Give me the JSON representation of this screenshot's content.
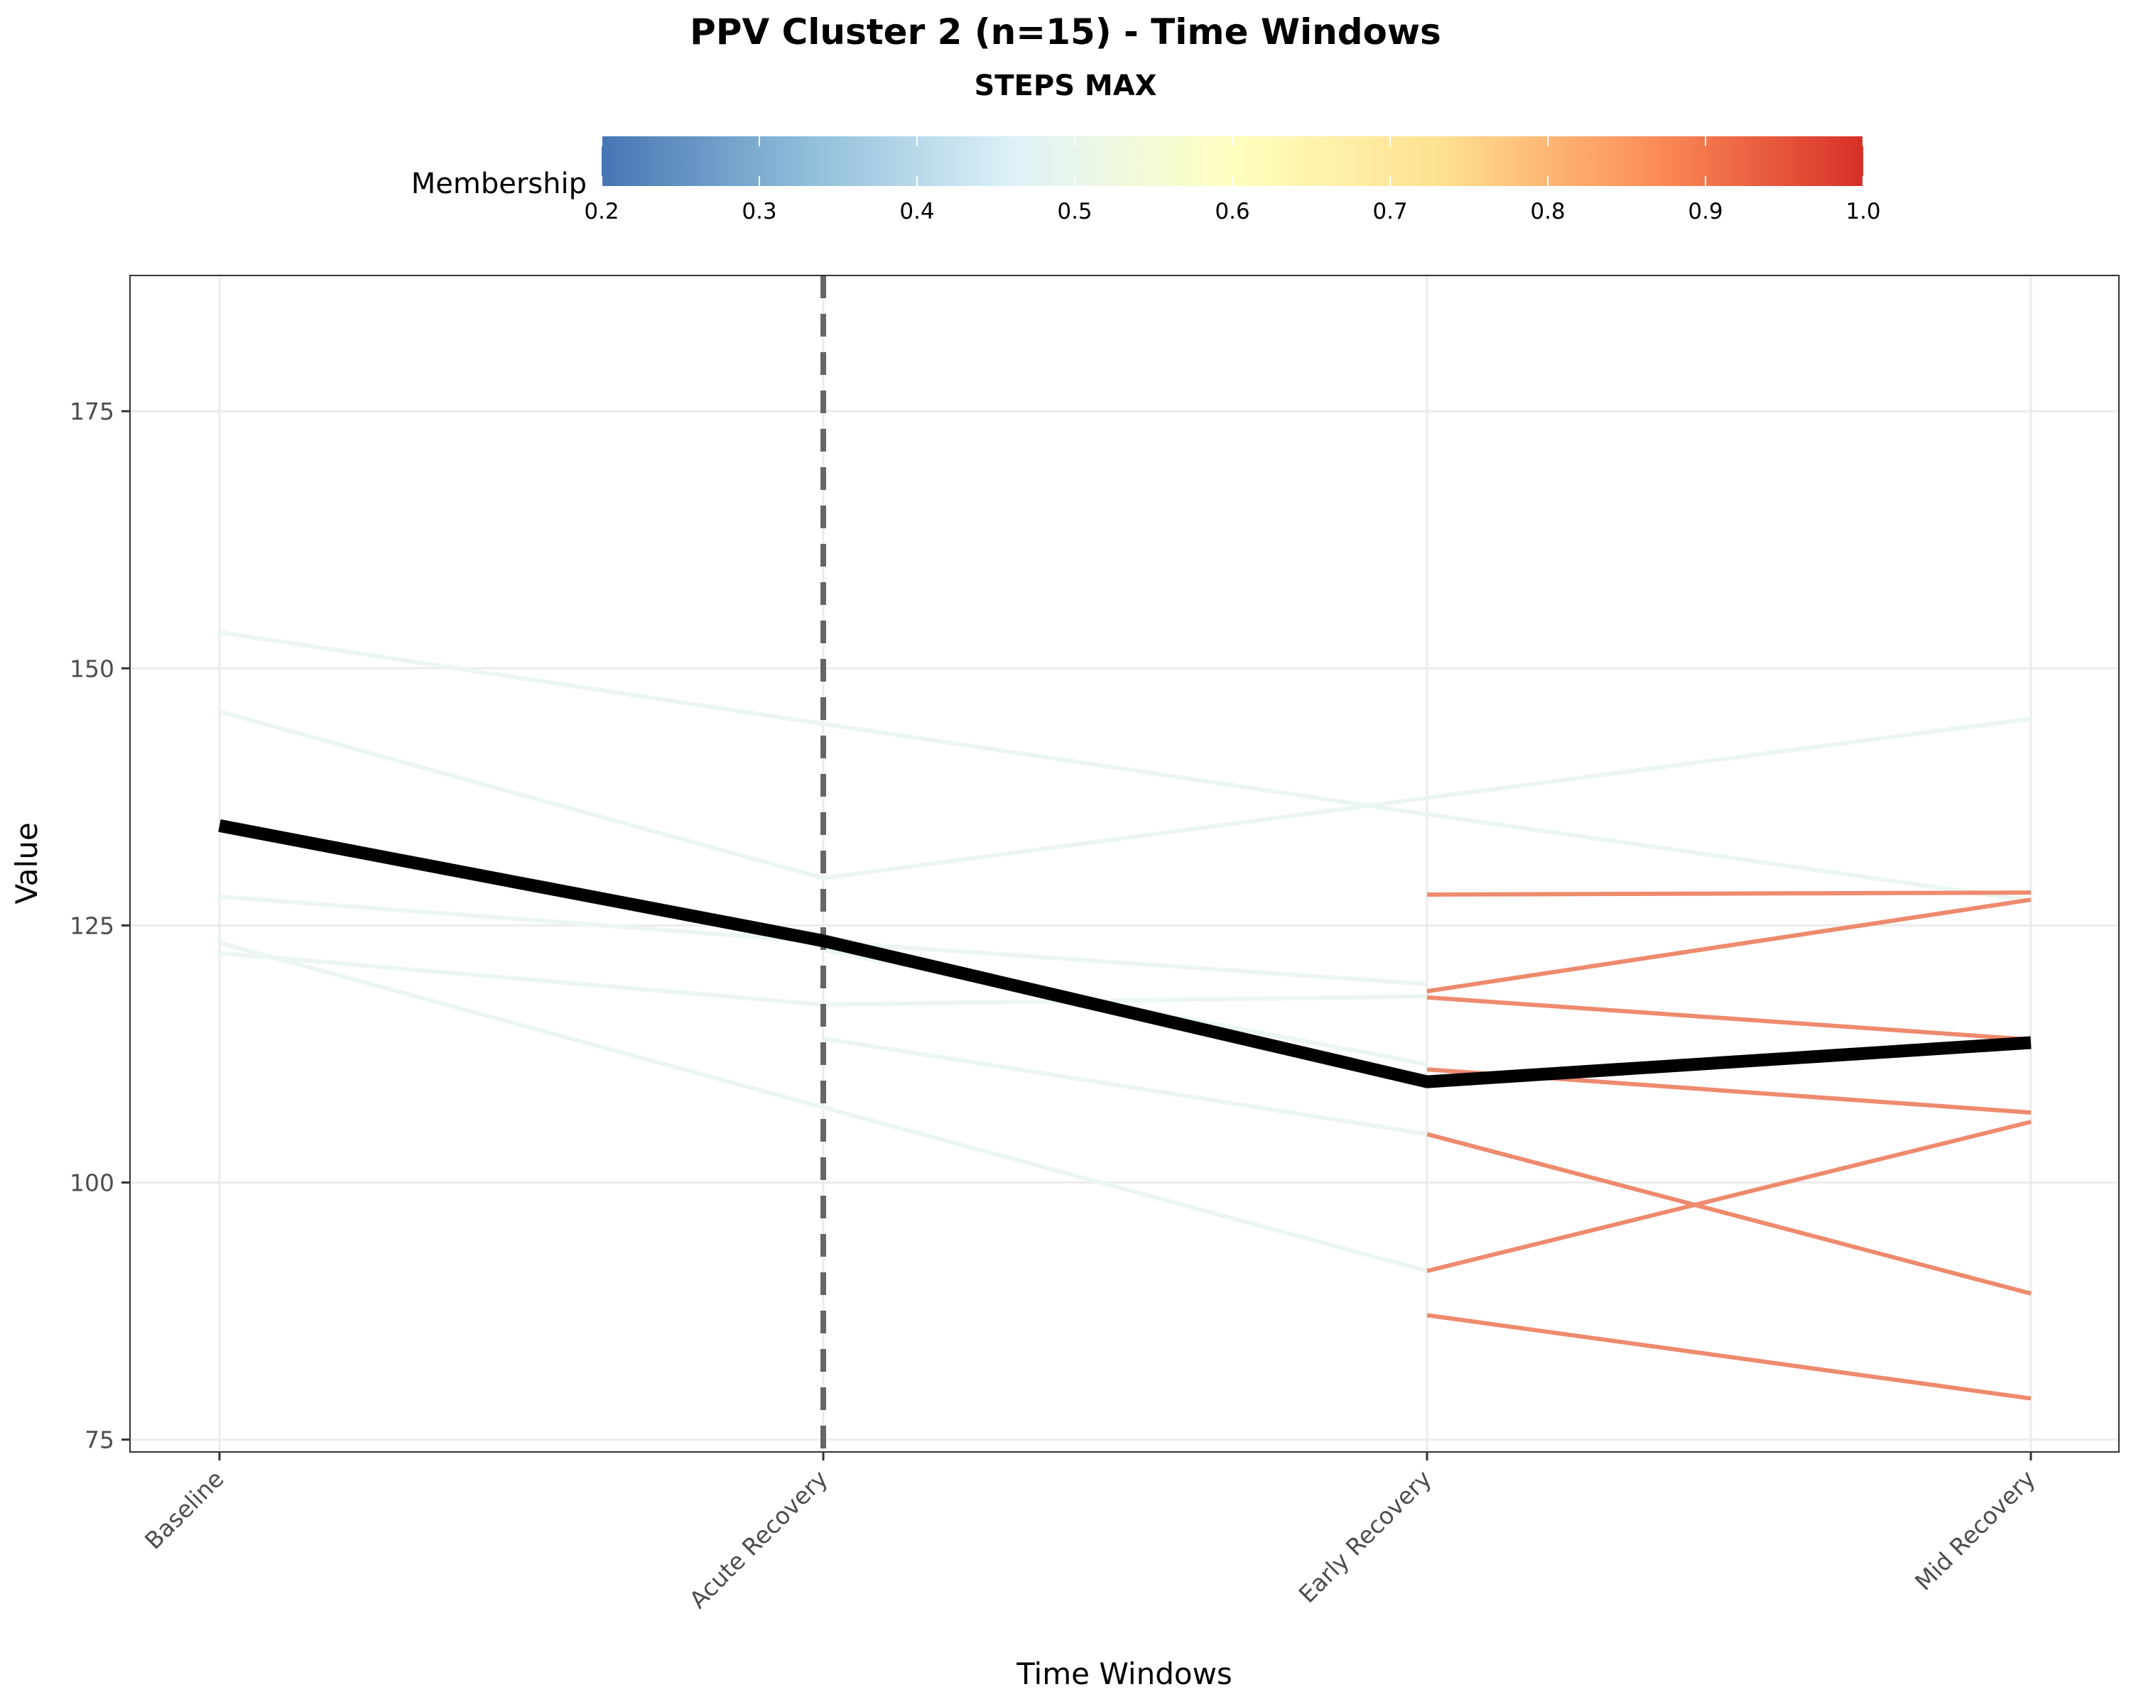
{
  "chart_data": {
    "type": "line",
    "title": "PPV Cluster 2 (n=15) - Time Windows",
    "subtitle": "STEPS MAX",
    "xlabel": "Time Windows",
    "ylabel": "Value",
    "categories": [
      "Baseline",
      "Acute Recovery",
      "Early Recovery",
      "Mid Recovery"
    ],
    "ylim": [
      73.8,
      188.2
    ],
    "yticks": [
      75,
      100,
      125,
      150,
      175
    ],
    "grid": true,
    "reference_line": {
      "category": "Acute Recovery",
      "style": "dashed",
      "color": "#666666"
    },
    "legend": {
      "title": "Membership",
      "type": "colorbar",
      "position": "top",
      "range": [
        0.2,
        1.0
      ],
      "ticks": [
        "0.2",
        "0.3",
        "0.4",
        "0.5",
        "0.6",
        "0.7",
        "0.8",
        "0.9",
        "1.0"
      ],
      "colors": [
        "#4575b4",
        "#91bfdb",
        "#e0f3f8",
        "#ffffbf",
        "#fee090",
        "#fc8d59",
        "#d73027"
      ]
    },
    "series": [
      {
        "values": [
          153.5,
          144.6,
          135.8,
          127.4
        ],
        "membership": 0.55,
        "color": "#ebf6f1"
      },
      {
        "values": [
          145.8,
          129.6,
          137.4,
          145.1
        ],
        "membership": 0.55,
        "color": "#ebf6f1"
      },
      {
        "values": [
          127.8,
          123.4,
          119.3,
          null
        ],
        "membership": 0.55,
        "color": "#ebf6f1"
      },
      {
        "values": [
          122.3,
          117.3,
          118.1,
          null
        ],
        "membership": 0.55,
        "color": "#ebf6f1"
      },
      {
        "values": [
          123.3,
          107.3,
          91.4,
          null
        ],
        "membership": 0.55,
        "color": "#ebf6f1"
      },
      {
        "values": [
          null,
          122.6,
          111.5,
          null
        ],
        "membership": 0.55,
        "color": "#ebf6f1"
      },
      {
        "values": [
          null,
          114.0,
          104.7,
          null
        ],
        "membership": 0.55,
        "color": "#ebf6f1"
      },
      {
        "values": [
          null,
          null,
          128.0,
          128.2
        ],
        "membership": 0.85,
        "color": "#ee8a6d"
      },
      {
        "values": [
          null,
          null,
          118.6,
          127.5
        ],
        "membership": 0.85,
        "color": "#ee8a6d"
      },
      {
        "values": [
          null,
          null,
          118.0,
          113.9
        ],
        "membership": 0.85,
        "color": "#ee8a6d"
      },
      {
        "values": [
          null,
          null,
          111.0,
          106.8
        ],
        "membership": 0.85,
        "color": "#ee8a6d"
      },
      {
        "values": [
          null,
          null,
          104.7,
          89.2
        ],
        "membership": 0.85,
        "color": "#ee8a6d"
      },
      {
        "values": [
          null,
          null,
          91.4,
          105.9
        ],
        "membership": 0.85,
        "color": "#ee8a6d"
      },
      {
        "values": [
          null,
          null,
          87.1,
          79.0
        ],
        "membership": 0.85,
        "color": "#ee8a6d"
      },
      {
        "values": [
          134.7,
          123.5,
          109.8,
          113.6
        ],
        "membership": null,
        "color": "#000000",
        "is_centroid": true
      }
    ]
  }
}
